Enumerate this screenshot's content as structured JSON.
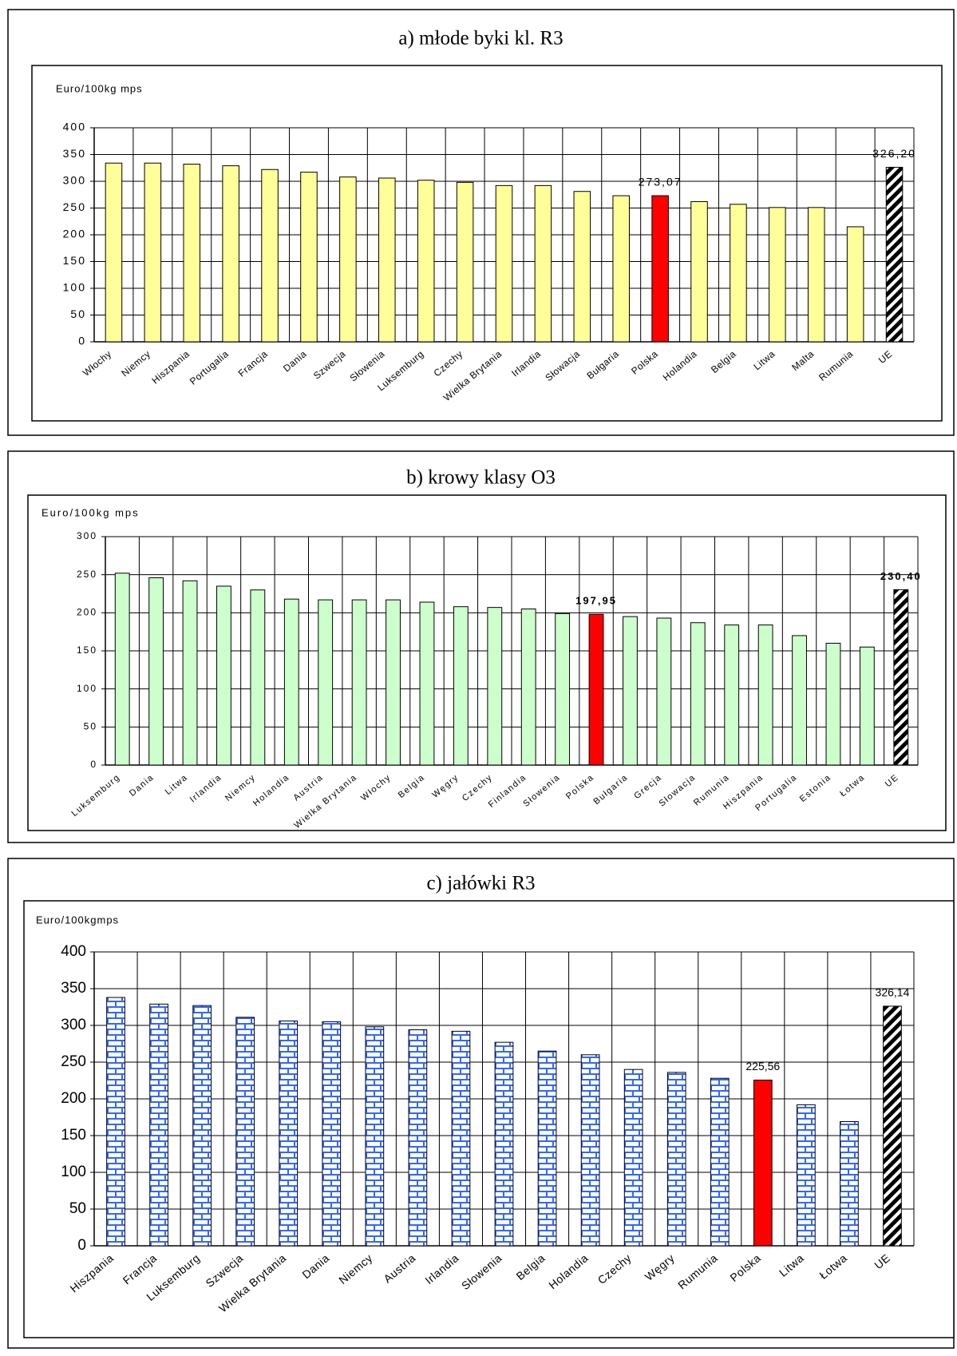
{
  "chart_data": [
    {
      "type": "bar",
      "title": "a)   młode byki kl. R3",
      "y_label": "Euro/100kg mps",
      "categories": [
        "Włochy",
        "Niemcy",
        "Hiszpania",
        "Portugalia",
        "Francja",
        "Dania",
        "Szwecja",
        "Słowenia",
        "Luksemburg",
        "Czechy",
        "Wielka Brytania",
        "Irlandia",
        "Słowacja",
        "Bułgaria",
        "Polska",
        "Holandia",
        "Belgia",
        "Litwa",
        "Malta",
        "Rumunia",
        "UE"
      ],
      "values": [
        334,
        334,
        332,
        329,
        322,
        317,
        308,
        306,
        302,
        298,
        292,
        292,
        281,
        273,
        273.07,
        262,
        257,
        251,
        251,
        215,
        326.2
      ],
      "value_labels": [
        null,
        null,
        null,
        null,
        null,
        null,
        null,
        null,
        null,
        null,
        null,
        null,
        null,
        null,
        "273,07",
        null,
        null,
        null,
        null,
        null,
        "326,20"
      ],
      "colors": [
        "#ffff99",
        "#ffff99",
        "#ffff99",
        "#ffff99",
        "#ffff99",
        "#ffff99",
        "#ffff99",
        "#ffff99",
        "#ffff99",
        "#ffff99",
        "#ffff99",
        "#ffff99",
        "#ffff99",
        "#ffff99",
        "#ff0000",
        "#ffff99",
        "#ffff99",
        "#ffff99",
        "#ffff99",
        "#ffff99",
        "#000000"
      ],
      "patterns": [
        null,
        null,
        null,
        null,
        null,
        null,
        null,
        null,
        null,
        null,
        null,
        null,
        null,
        null,
        null,
        null,
        null,
        null,
        null,
        null,
        "diagonal"
      ],
      "ylim": [
        0,
        400
      ],
      "yticks": [
        0,
        50,
        100,
        150,
        200,
        250,
        300,
        350,
        400
      ],
      "grid": true
    },
    {
      "type": "bar",
      "title": "b) krowy klasy O3",
      "y_label": "Euro/100kg mps",
      "categories": [
        "Luksemburg",
        "Dania",
        "Litwa",
        "Irlandia",
        "Niemcy",
        "Holandia",
        "Austria",
        "Wielka Brytania",
        "Włochy",
        "Belgia",
        "Węgry",
        "Czechy",
        "Finlandia",
        "Słowenia",
        "Polska",
        "Bułgaria",
        "Grecja",
        "Słowacja",
        "Rumunia",
        "Hiszpania",
        "Portugalia",
        "Estonia",
        "Łotwa",
        "UE"
      ],
      "values": [
        252,
        246,
        242,
        235,
        230,
        218,
        217,
        217,
        217,
        214,
        208,
        207,
        205,
        199,
        197.95,
        195,
        193,
        187,
        184,
        184,
        170,
        160,
        155,
        230.4
      ],
      "value_labels": [
        null,
        null,
        null,
        null,
        null,
        null,
        null,
        null,
        null,
        null,
        null,
        null,
        null,
        null,
        "197,95",
        null,
        null,
        null,
        null,
        null,
        null,
        null,
        null,
        "230,40"
      ],
      "colors": [
        "#ccffcc",
        "#ccffcc",
        "#ccffcc",
        "#ccffcc",
        "#ccffcc",
        "#ccffcc",
        "#ccffcc",
        "#ccffcc",
        "#ccffcc",
        "#ccffcc",
        "#ccffcc",
        "#ccffcc",
        "#ccffcc",
        "#ccffcc",
        "#ff0000",
        "#ccffcc",
        "#ccffcc",
        "#ccffcc",
        "#ccffcc",
        "#ccffcc",
        "#ccffcc",
        "#ccffcc",
        "#ccffcc",
        "#000000"
      ],
      "patterns": [
        null,
        null,
        null,
        null,
        null,
        null,
        null,
        null,
        null,
        null,
        null,
        null,
        null,
        null,
        null,
        null,
        null,
        null,
        null,
        null,
        null,
        null,
        null,
        "diagonal"
      ],
      "ylim": [
        0,
        300
      ],
      "yticks": [
        0,
        50,
        100,
        150,
        200,
        250,
        300
      ],
      "grid": true
    },
    {
      "type": "bar",
      "title": "c) jałówki R3",
      "y_label": "Euro/100kgmps",
      "categories": [
        "Hiszpania",
        "Francja",
        "Luksemburg",
        "Szwecja",
        "Wielka Brytania",
        "Dania",
        "Niemcy",
        "Austria",
        "Irlandia",
        "Słowenia",
        "Belgia",
        "Holandia",
        "Czechy",
        "Węgry",
        "Rumunia",
        "Polska",
        "Litwa",
        "Łotwa",
        "UE"
      ],
      "values": [
        338,
        329,
        327,
        311,
        306,
        305,
        298,
        294,
        292,
        277,
        265,
        260,
        240,
        236,
        228,
        225.56,
        192,
        169,
        326.14
      ],
      "value_labels": [
        null,
        null,
        null,
        null,
        null,
        null,
        null,
        null,
        null,
        null,
        null,
        null,
        null,
        null,
        null,
        "225,56",
        null,
        null,
        "326,14"
      ],
      "colors": [
        "#3366ff",
        "#3366ff",
        "#3366ff",
        "#3366ff",
        "#3366ff",
        "#3366ff",
        "#3366ff",
        "#3366ff",
        "#3366ff",
        "#3366ff",
        "#3366ff",
        "#3366ff",
        "#3366ff",
        "#3366ff",
        "#3366ff",
        "#ff0000",
        "#3366ff",
        "#3366ff",
        "#000000"
      ],
      "patterns": [
        "brick",
        "brick",
        "brick",
        "brick",
        "brick",
        "brick",
        "brick",
        "brick",
        "brick",
        "brick",
        "brick",
        "brick",
        "brick",
        "brick",
        "brick",
        null,
        "brick",
        "brick",
        "diagonal"
      ],
      "ylim": [
        0,
        400
      ],
      "yticks": [
        0,
        50,
        100,
        150,
        200,
        250,
        300,
        350,
        400
      ],
      "grid": true
    }
  ]
}
